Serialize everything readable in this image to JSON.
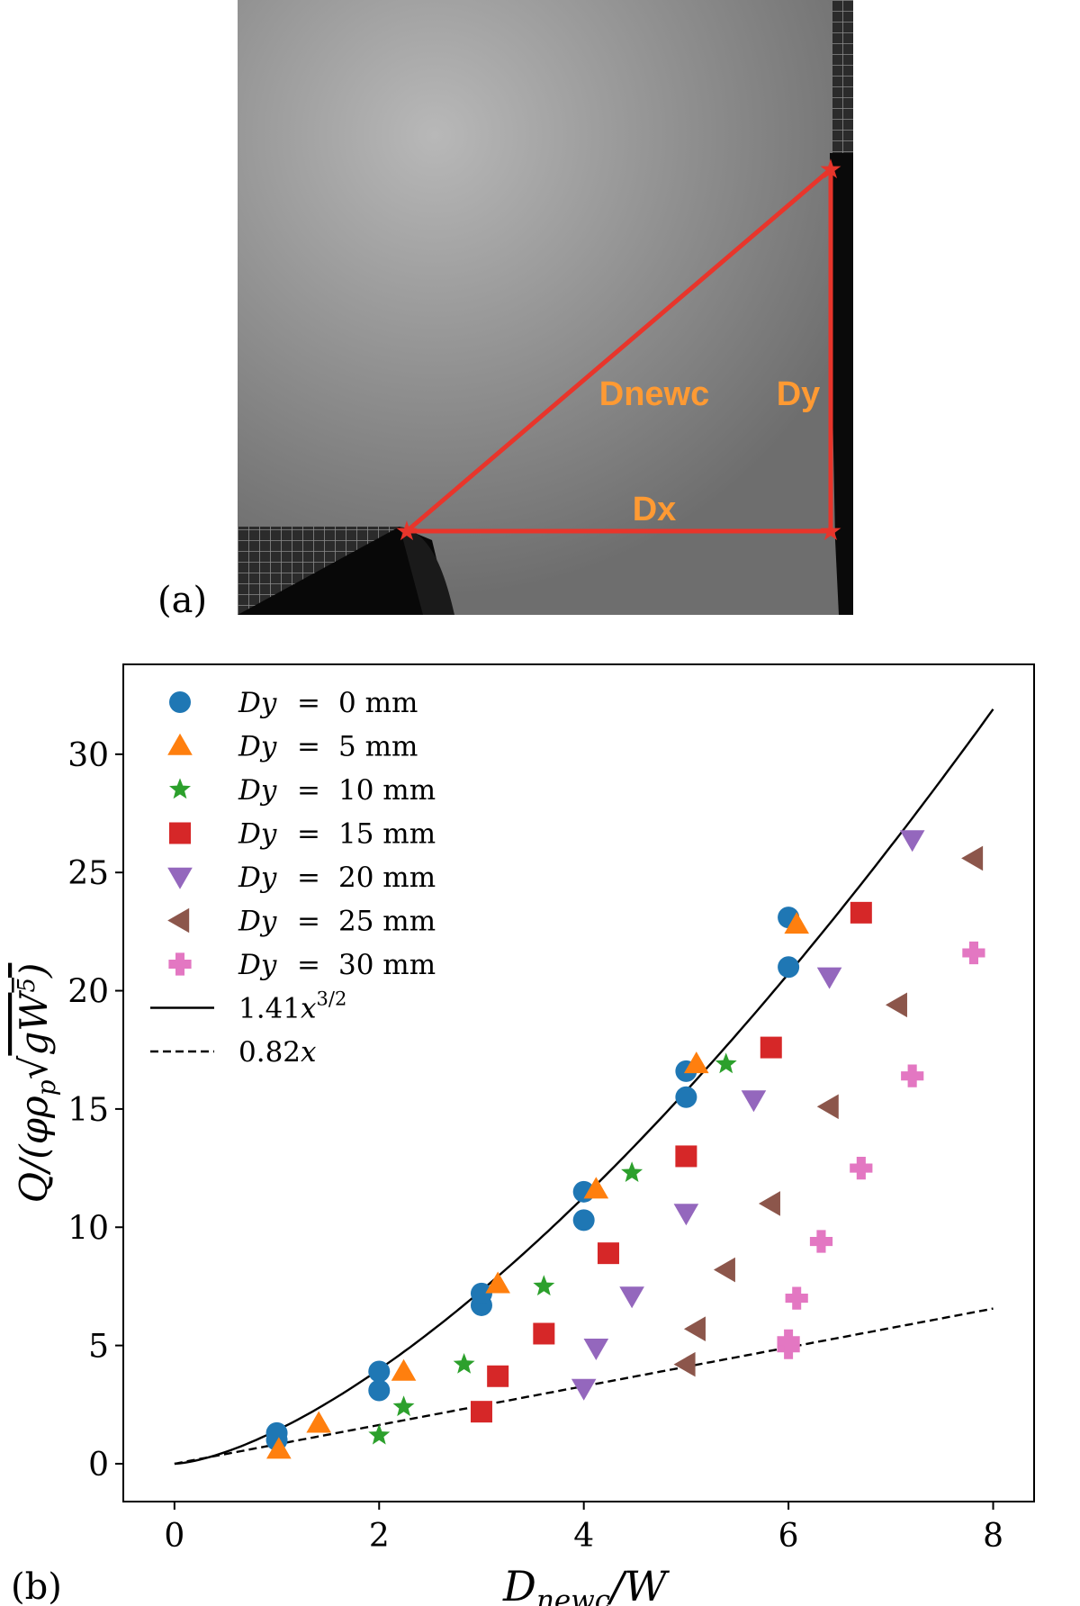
{
  "panel_a": {
    "label": "(a)",
    "annotations": {
      "dnewc": "Dnewc",
      "dy": "Dy",
      "dx": "Dx"
    },
    "colors": {
      "line": "#e8352b",
      "text": "#ff9a33"
    }
  },
  "chart_data": {
    "type": "scatter",
    "panel_label": "(b)",
    "xlabel": "D_newc / W",
    "ylabel": "Q / (φ ρ_p √(gW⁵))",
    "xlim": [
      -0.5,
      8.4
    ],
    "ylim": [
      -1.6,
      33.8
    ],
    "xticks": [
      0,
      2,
      4,
      6,
      8
    ],
    "yticks": [
      0,
      5,
      10,
      15,
      20,
      25,
      30
    ],
    "grid": false,
    "legend_position": "top-left",
    "series": [
      {
        "name": "Dy = 0 mm",
        "label": "0 mm",
        "marker": "circle",
        "color": "#1f77b4",
        "x": [
          1,
          1,
          2,
          2,
          3,
          3,
          4,
          4,
          5,
          5,
          6,
          6
        ],
        "y": [
          1.0,
          1.3,
          3.1,
          3.9,
          6.7,
          7.2,
          10.3,
          11.5,
          15.5,
          16.6,
          21.0,
          23.1
        ]
      },
      {
        "name": "Dy = 5 mm",
        "label": "5 mm",
        "marker": "triangle-up",
        "color": "#ff7f0e",
        "x": [
          1.02,
          1.41,
          2.24,
          3.16,
          4.12,
          5.1,
          6.08
        ],
        "y": [
          0.6,
          1.7,
          3.9,
          7.6,
          11.6,
          16.9,
          22.8
        ]
      },
      {
        "name": "Dy = 10 mm",
        "label": "10 mm",
        "marker": "star",
        "color": "#2ca02c",
        "x": [
          2.0,
          2.24,
          2.83,
          3.61,
          4.47,
          5.39
        ],
        "y": [
          1.2,
          2.4,
          4.2,
          7.5,
          12.3,
          16.9
        ]
      },
      {
        "name": "Dy = 15 mm",
        "label": "15 mm",
        "marker": "square",
        "color": "#d62728",
        "x": [
          3.0,
          3.16,
          3.61,
          4.24,
          5.0,
          5.83,
          6.71
        ],
        "y": [
          2.2,
          3.7,
          5.5,
          8.9,
          13.0,
          17.6,
          23.3
        ]
      },
      {
        "name": "Dy = 20 mm",
        "label": "20 mm",
        "marker": "triangle-down",
        "color": "#9467bd",
        "x": [
          4.0,
          4.12,
          4.47,
          5.0,
          5.66,
          6.4,
          7.21
        ],
        "y": [
          3.2,
          4.9,
          7.1,
          10.6,
          15.4,
          20.6,
          26.4
        ]
      },
      {
        "name": "Dy = 25 mm",
        "label": "25 mm",
        "marker": "triangle-left",
        "color": "#8c564b",
        "x": [
          5.0,
          5.1,
          5.39,
          5.83,
          6.4,
          7.07,
          7.81
        ],
        "y": [
          4.2,
          5.7,
          8.2,
          11.0,
          15.1,
          19.4,
          25.6
        ]
      },
      {
        "name": "Dy = 30 mm",
        "label": "30 mm",
        "marker": "plus",
        "color": "#e377c2",
        "x": [
          6.0,
          6.0,
          6.08,
          6.32,
          6.71,
          7.21,
          7.81
        ],
        "y": [
          4.9,
          5.2,
          7.0,
          9.4,
          12.5,
          16.4,
          21.6
        ]
      }
    ],
    "curves": [
      {
        "name": "1.41x^{3/2}",
        "label": "1.41x^(3/2)",
        "coef": 1.41,
        "power": 1.5,
        "style": "solid",
        "color": "#000000",
        "x_range": [
          0,
          8
        ]
      },
      {
        "name": "0.82x",
        "label": "0.82x",
        "coef": 0.82,
        "power": 1.0,
        "style": "dashed",
        "color": "#000000",
        "x_range": [
          0,
          8
        ]
      }
    ],
    "legend_prefix": "Dy",
    "legend_equals": "="
  }
}
